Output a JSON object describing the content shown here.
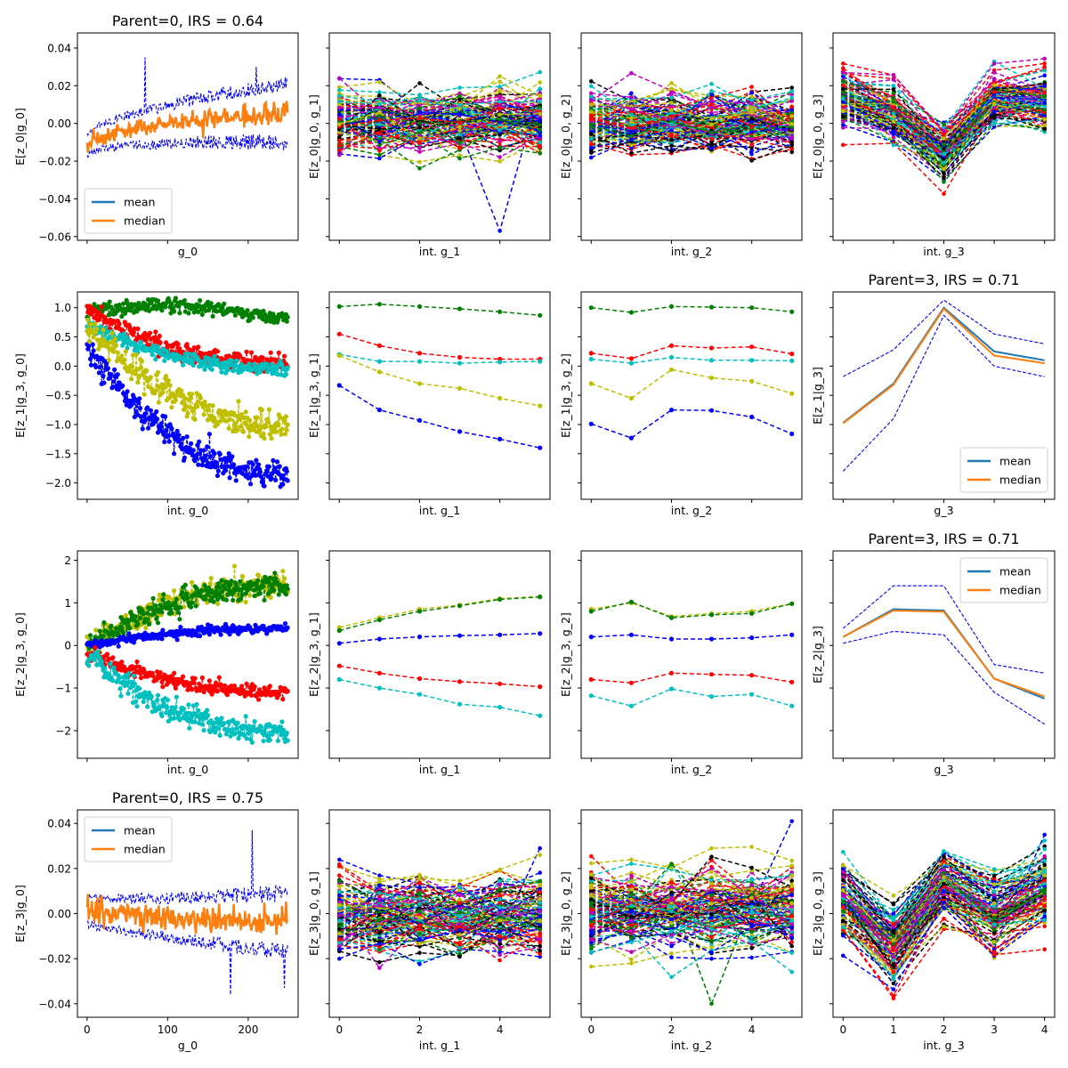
{
  "figure": {
    "grid": {
      "rows": 4,
      "cols": 4
    },
    "palette": [
      "#0000ff",
      "#008000",
      "#ff0000",
      "#00bfbf",
      "#bfbf00",
      "#bf00bf",
      "#000000"
    ],
    "mean_color": "#1f77b4",
    "median_color": "#ff7f0e"
  },
  "chart_data": [
    {
      "id": "r0c0",
      "type": "line",
      "title": "Parent=0, IRS = 0.64",
      "xlabel": "g_0",
      "ylabel": "E[z_0|g_0]",
      "xlim": [
        -12,
        262
      ],
      "ylim": [
        -0.062,
        0.048
      ],
      "xticks": [
        0,
        100,
        200
      ],
      "yticks": [
        -0.06,
        -0.04,
        -0.02,
        0.0,
        0.02,
        0.04
      ],
      "ytick_labels": [
        "−0.06",
        "−0.04",
        "−0.02",
        "0.00",
        "0.02",
        "0.04"
      ],
      "show_xtick_labels": false,
      "show_ytick_labels": true,
      "legend": {
        "position": "lower-left",
        "entries": [
          "mean",
          "median"
        ]
      },
      "noise": {
        "n": 250,
        "start": -0.012,
        "end": 0.006,
        "band_start": 0.006,
        "band_end": 0.016,
        "median_jitter": 0.005,
        "spikes": [
          [
            72,
            0.035
          ],
          [
            210,
            0.03
          ]
        ]
      }
    },
    {
      "id": "r0c1",
      "type": "line",
      "title": "",
      "xlabel": "int. g_1",
      "ylabel": "E[z_0|g_0, g_1]",
      "xlim": [
        -0.25,
        5.25
      ],
      "ylim": [
        -0.062,
        0.048
      ],
      "xticks": [
        0,
        2,
        4
      ],
      "yticks": [
        -0.06,
        -0.04,
        -0.02,
        0.0,
        0.02,
        0.04
      ],
      "show_xtick_labels": false,
      "show_ytick_labels": false,
      "many": {
        "lines": 110,
        "points": 6,
        "center": [
          0,
          0,
          0,
          0,
          0,
          0
        ],
        "spread": 0.009,
        "outliers": [
          [
            4,
            -0.057
          ]
        ]
      }
    },
    {
      "id": "r0c2",
      "type": "line",
      "title": "",
      "xlabel": "int. g_2",
      "ylabel": "E[z_0|g_0, g_2]",
      "xlim": [
        -0.25,
        5.25
      ],
      "ylim": [
        -0.062,
        0.048
      ],
      "xticks": [
        0,
        2,
        4
      ],
      "yticks": [
        -0.06,
        -0.04,
        -0.02,
        0.0,
        0.02,
        0.04
      ],
      "show_xtick_labels": false,
      "show_ytick_labels": false,
      "many": {
        "lines": 110,
        "points": 6,
        "center": [
          0,
          0,
          0,
          0,
          0,
          0
        ],
        "spread": 0.009,
        "outliers": []
      }
    },
    {
      "id": "r0c3",
      "type": "line",
      "title": "",
      "xlabel": "int. g_3",
      "ylabel": "E[z_0|g_0, g_3]",
      "xlim": [
        -0.2,
        4.2
      ],
      "ylim": [
        -0.062,
        0.048
      ],
      "xticks": [
        0,
        1,
        2,
        3,
        4
      ],
      "yticks": [
        -0.06,
        -0.04,
        -0.02,
        0.0,
        0.02,
        0.04
      ],
      "show_xtick_labels": false,
      "show_ytick_labels": false,
      "many": {
        "lines": 110,
        "points": 5,
        "center": [
          0.015,
          0.005,
          -0.015,
          0.013,
          0.012
        ],
        "spread": 0.008,
        "outliers": []
      }
    },
    {
      "id": "r1c0",
      "type": "scatter",
      "title": "",
      "xlabel": "int. g_0",
      "ylabel": "E[z_1|g_3, g_0]",
      "xlim": [
        -12,
        262
      ],
      "ylim": [
        -2.28,
        1.27
      ],
      "xticks": [
        0,
        100,
        200
      ],
      "yticks": [
        -2.0,
        -1.5,
        -1.0,
        -0.5,
        0.0,
        0.5,
        1.0
      ],
      "ytick_labels": [
        "−2.0",
        "−1.5",
        "−1.0",
        "−0.5",
        "0.0",
        "0.5",
        "1.0"
      ],
      "show_xtick_labels": false,
      "show_ytick_labels": true,
      "series": [
        {
          "color": "#0000ff",
          "y0": 0.35,
          "y1": -1.85,
          "shape": "concave",
          "noise": 0.12
        },
        {
          "color": "#008000",
          "y0": 0.95,
          "y1": 0.85,
          "shape": "hump",
          "noise": 0.06
        },
        {
          "color": "#ff0000",
          "y0": 0.95,
          "y1": 0.05,
          "shape": "concave",
          "noise": 0.08
        },
        {
          "color": "#00bfbf",
          "y0": 0.7,
          "y1": -0.05,
          "shape": "concave",
          "noise": 0.06
        },
        {
          "color": "#bfbf00",
          "y0": 0.7,
          "y1": -1.0,
          "shape": "concave",
          "noise": 0.12
        }
      ]
    },
    {
      "id": "r1c1",
      "type": "line",
      "title": "",
      "xlabel": "int. g_1",
      "ylabel": "E[z_1|g_3, g_1]",
      "xlim": [
        -0.25,
        5.25
      ],
      "ylim": [
        -2.28,
        1.27
      ],
      "xticks": [
        0,
        2,
        4
      ],
      "yticks": [
        -2.0,
        -1.5,
        -1.0,
        -0.5,
        0.0,
        0.5,
        1.0
      ],
      "show_xtick_labels": false,
      "show_ytick_labels": false,
      "series": [
        {
          "color": "#008000",
          "values": [
            1.02,
            1.06,
            1.02,
            0.98,
            0.93,
            0.87
          ]
        },
        {
          "color": "#ff0000",
          "values": [
            0.55,
            0.35,
            0.22,
            0.15,
            0.12,
            0.12
          ]
        },
        {
          "color": "#00bfbf",
          "values": [
            0.2,
            0.08,
            0.08,
            0.05,
            0.07,
            0.08
          ]
        },
        {
          "color": "#bfbf00",
          "values": [
            0.18,
            -0.1,
            -0.3,
            -0.38,
            -0.55,
            -0.68
          ]
        },
        {
          "color": "#0000ff",
          "values": [
            -0.33,
            -0.75,
            -0.93,
            -1.12,
            -1.25,
            -1.4
          ]
        }
      ]
    },
    {
      "id": "r1c2",
      "type": "line",
      "title": "",
      "xlabel": "int. g_2",
      "ylabel": "E[z_1|g_3, g_2]",
      "xlim": [
        -0.25,
        5.25
      ],
      "ylim": [
        -2.28,
        1.27
      ],
      "xticks": [
        0,
        2,
        4
      ],
      "yticks": [
        -2.0,
        -1.5,
        -1.0,
        -0.5,
        0.0,
        0.5,
        1.0
      ],
      "show_xtick_labels": false,
      "show_ytick_labels": false,
      "series": [
        {
          "color": "#008000",
          "values": [
            1.0,
            0.92,
            1.02,
            1.01,
            1.0,
            0.93
          ]
        },
        {
          "color": "#ff0000",
          "values": [
            0.22,
            0.13,
            0.35,
            0.31,
            0.33,
            0.21
          ]
        },
        {
          "color": "#00bfbf",
          "values": [
            0.12,
            0.05,
            0.15,
            0.1,
            0.1,
            0.09
          ]
        },
        {
          "color": "#bfbf00",
          "values": [
            -0.3,
            -0.55,
            -0.06,
            -0.2,
            -0.26,
            -0.47
          ]
        },
        {
          "color": "#0000ff",
          "values": [
            -0.99,
            -1.23,
            -0.75,
            -0.76,
            -0.87,
            -1.16
          ]
        }
      ]
    },
    {
      "id": "r1c3",
      "type": "line",
      "title": "Parent=3, IRS = 0.71",
      "xlabel": "g_3",
      "ylabel": "E[z_1|g_3]",
      "xlim": [
        -0.2,
        4.2
      ],
      "ylim": [
        -2.28,
        1.27
      ],
      "xticks": [
        0,
        1,
        2,
        3,
        4
      ],
      "yticks": [
        -2.0,
        -1.5,
        -1.0,
        -0.5,
        0.0,
        0.5,
        1.0
      ],
      "show_xtick_labels": false,
      "show_ytick_labels": false,
      "legend": {
        "position": "lower-right",
        "entries": [
          "mean",
          "median"
        ]
      },
      "stat": {
        "mean": [
          -0.97,
          -0.3,
          1.0,
          0.25,
          0.1
        ],
        "median": [
          -0.98,
          -0.32,
          0.98,
          0.18,
          0.05
        ],
        "upper": [
          -0.18,
          0.28,
          1.13,
          0.55,
          0.38
        ],
        "lower": [
          -1.8,
          -0.9,
          0.87,
          0.0,
          -0.18
        ]
      }
    },
    {
      "id": "r2c0",
      "type": "scatter",
      "title": "",
      "xlabel": "int. g_0",
      "ylabel": "E[z_2|g_3, g_0]",
      "xlim": [
        -12,
        262
      ],
      "ylim": [
        -2.65,
        2.22
      ],
      "xticks": [
        0,
        100,
        200
      ],
      "yticks": [
        -2,
        -1,
        0,
        1,
        2
      ],
      "ytick_labels": [
        "−2",
        "−1",
        "0",
        "1",
        "2"
      ],
      "show_xtick_labels": false,
      "show_ytick_labels": true,
      "series": [
        {
          "color": "#bfbf00",
          "y0": -0.05,
          "y1": 1.45,
          "shape": "concave",
          "noise": 0.14
        },
        {
          "color": "#008000",
          "y0": -0.05,
          "y1": 1.4,
          "shape": "concave",
          "noise": 0.14
        },
        {
          "color": "#0000ff",
          "y0": 0.0,
          "y1": 0.4,
          "shape": "concave",
          "noise": 0.05
        },
        {
          "color": "#ff0000",
          "y0": -0.15,
          "y1": -1.1,
          "shape": "concave",
          "noise": 0.09
        },
        {
          "color": "#00bfbf",
          "y0": -0.25,
          "y1": -2.05,
          "shape": "concave",
          "noise": 0.14
        }
      ]
    },
    {
      "id": "r2c1",
      "type": "line",
      "title": "",
      "xlabel": "int. g_1",
      "ylabel": "E[z_2|g_3, g_1]",
      "xlim": [
        -0.25,
        5.25
      ],
      "ylim": [
        -2.65,
        2.22
      ],
      "xticks": [
        0,
        2,
        4
      ],
      "yticks": [
        -2,
        -1,
        0,
        1,
        2
      ],
      "show_xtick_labels": false,
      "show_ytick_labels": false,
      "series": [
        {
          "color": "#bfbf00",
          "values": [
            0.42,
            0.65,
            0.85,
            0.95,
            1.1,
            1.15
          ]
        },
        {
          "color": "#008000",
          "values": [
            0.35,
            0.6,
            0.8,
            0.93,
            1.08,
            1.14
          ]
        },
        {
          "color": "#0000ff",
          "values": [
            0.05,
            0.15,
            0.2,
            0.23,
            0.25,
            0.28
          ]
        },
        {
          "color": "#ff0000",
          "values": [
            -0.48,
            -0.65,
            -0.78,
            -0.85,
            -0.9,
            -0.97
          ]
        },
        {
          "color": "#00bfbf",
          "values": [
            -0.8,
            -1.0,
            -1.15,
            -1.38,
            -1.45,
            -1.65
          ]
        }
      ]
    },
    {
      "id": "r2c2",
      "type": "line",
      "title": "",
      "xlabel": "int. g_2",
      "ylabel": "E[z_2|g_3, g_2]",
      "xlim": [
        -0.25,
        5.25
      ],
      "ylim": [
        -2.65,
        2.22
      ],
      "xticks": [
        0,
        2,
        4
      ],
      "yticks": [
        -2,
        -1,
        0,
        1,
        2
      ],
      "show_xtick_labels": false,
      "show_ytick_labels": false,
      "series": [
        {
          "color": "#bfbf00",
          "values": [
            0.85,
            1.0,
            0.68,
            0.75,
            0.8,
            0.98
          ]
        },
        {
          "color": "#008000",
          "values": [
            0.8,
            1.02,
            0.65,
            0.72,
            0.75,
            0.98
          ]
        },
        {
          "color": "#0000ff",
          "values": [
            0.2,
            0.25,
            0.15,
            0.15,
            0.18,
            0.25
          ]
        },
        {
          "color": "#ff0000",
          "values": [
            -0.8,
            -0.88,
            -0.65,
            -0.68,
            -0.7,
            -0.86
          ]
        },
        {
          "color": "#00bfbf",
          "values": [
            -1.18,
            -1.42,
            -1.02,
            -1.2,
            -1.15,
            -1.42
          ]
        }
      ]
    },
    {
      "id": "r2c3",
      "type": "line",
      "title": "Parent=3, IRS = 0.71",
      "xlabel": "g_3",
      "ylabel": "E[z_2|g_3]",
      "xlim": [
        -0.2,
        4.2
      ],
      "ylim": [
        -2.65,
        2.22
      ],
      "xticks": [
        0,
        1,
        2,
        3,
        4
      ],
      "yticks": [
        -2,
        -1,
        0,
        1,
        2
      ],
      "show_xtick_labels": false,
      "show_ytick_labels": false,
      "legend": {
        "position": "top-right",
        "entries": [
          "mean",
          "median"
        ]
      },
      "stat": {
        "mean": [
          0.2,
          0.85,
          0.82,
          -0.78,
          -1.25
        ],
        "median": [
          0.2,
          0.82,
          0.79,
          -0.78,
          -1.2
        ],
        "upper": [
          0.4,
          1.4,
          1.4,
          -0.45,
          -0.65
        ],
        "lower": [
          0.05,
          0.33,
          0.25,
          -1.1,
          -1.85
        ]
      }
    },
    {
      "id": "r3c0",
      "type": "line",
      "title": "Parent=0, IRS = 0.75",
      "xlabel": "g_0",
      "ylabel": "E[z_3|g_0]",
      "xlim": [
        -12,
        262
      ],
      "ylim": [
        -0.046,
        0.046
      ],
      "xticks": [
        0,
        100,
        200
      ],
      "yticks": [
        -0.04,
        -0.02,
        0.0,
        0.02,
        0.04
      ],
      "xtick_labels": [
        "0",
        "100",
        "200"
      ],
      "ytick_labels": [
        "−0.04",
        "−0.02",
        "0.00",
        "0.02",
        "0.04"
      ],
      "show_xtick_labels": true,
      "show_ytick_labels": true,
      "legend": {
        "position": "top-left",
        "entries": [
          "mean",
          "median"
        ]
      },
      "noise": {
        "n": 250,
        "start": 0.002,
        "end": -0.004,
        "band_start": 0.006,
        "band_end": 0.013,
        "median_jitter": 0.005,
        "spikes": [
          [
            205,
            0.037
          ],
          [
            245,
            -0.033
          ],
          [
            178,
            -0.036
          ]
        ]
      }
    },
    {
      "id": "r3c1",
      "type": "line",
      "title": "",
      "xlabel": "int. g_1",
      "ylabel": "E[z_3|g_0, g_1]",
      "xlim": [
        -0.25,
        5.25
      ],
      "ylim": [
        -0.046,
        0.046
      ],
      "xticks": [
        0,
        2,
        4
      ],
      "yticks": [
        -0.04,
        -0.02,
        0.0,
        0.02,
        0.04
      ],
      "xtick_labels": [
        "0",
        "2",
        "4"
      ],
      "show_xtick_labels": true,
      "show_ytick_labels": false,
      "many": {
        "lines": 110,
        "points": 6,
        "center": [
          0,
          0,
          0,
          0,
          0,
          0
        ],
        "spread": 0.01,
        "outliers": [
          [
            5,
            0.029
          ]
        ]
      }
    },
    {
      "id": "r3c2",
      "type": "line",
      "title": "",
      "xlabel": "int. g_2",
      "ylabel": "E[z_3|g_0, g_2]",
      "xlim": [
        -0.25,
        5.25
      ],
      "ylim": [
        -0.046,
        0.046
      ],
      "xticks": [
        0,
        2,
        4
      ],
      "yticks": [
        -0.04,
        -0.02,
        0.0,
        0.02,
        0.04
      ],
      "xtick_labels": [
        "0",
        "2",
        "4"
      ],
      "show_xtick_labels": true,
      "show_ytick_labels": false,
      "many": {
        "lines": 110,
        "points": 6,
        "center": [
          0,
          0,
          0,
          0,
          0,
          0
        ],
        "spread": 0.01,
        "outliers": [
          [
            5,
            0.041
          ],
          [
            3,
            -0.04
          ]
        ]
      }
    },
    {
      "id": "r3c3",
      "type": "line",
      "title": "",
      "xlabel": "int. g_3",
      "ylabel": "E[z_3|g_0, g_3]",
      "xlim": [
        -0.2,
        4.2
      ],
      "ylim": [
        -0.046,
        0.046
      ],
      "xticks": [
        0,
        1,
        2,
        3,
        4
      ],
      "yticks": [
        -0.04,
        -0.02,
        0.0,
        0.02,
        0.04
      ],
      "xtick_labels": [
        "0",
        "1",
        "2",
        "3",
        "4"
      ],
      "show_xtick_labels": true,
      "show_ytick_labels": false,
      "many": {
        "lines": 110,
        "points": 5,
        "center": [
          0.005,
          -0.015,
          0.013,
          0.0,
          0.01
        ],
        "spread": 0.009,
        "outliers": [
          [
            4,
            0.035
          ]
        ]
      }
    }
  ]
}
